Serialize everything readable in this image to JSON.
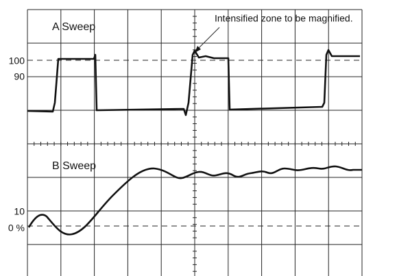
{
  "panels": [
    {
      "label": "A Sweep"
    },
    {
      "label": "B Sweep"
    }
  ],
  "annotation": "Intensified zone to be magnified.",
  "scale_labels": {
    "a": [
      "100",
      "90"
    ],
    "b": [
      "10",
      "0 %"
    ]
  }
}
